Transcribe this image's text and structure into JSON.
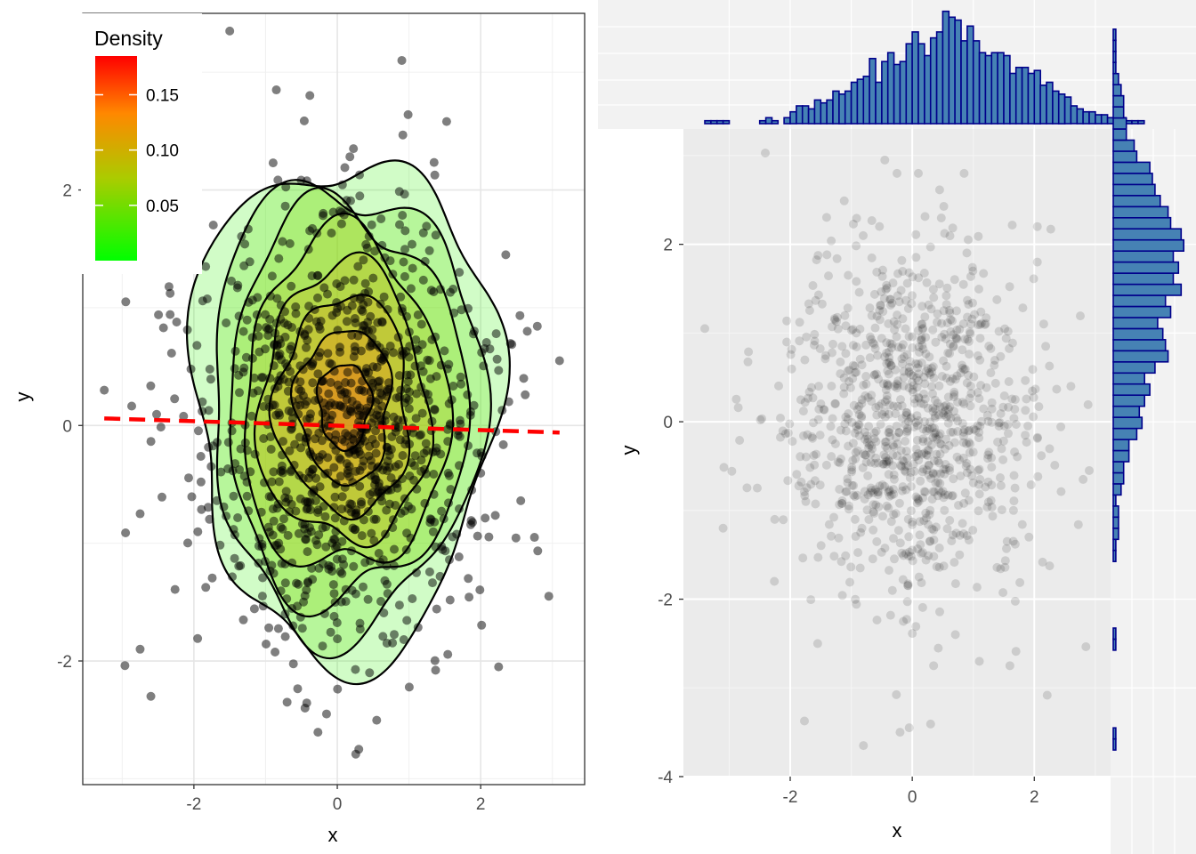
{
  "chart_data": [
    {
      "type": "scatter",
      "panel": "left",
      "title": "",
      "xlabel": "x",
      "ylabel": "y",
      "xlim": [
        -3.55,
        3.45
      ],
      "ylim": [
        -3.05,
        3.5
      ],
      "x_ticks": [
        -2,
        0,
        2
      ],
      "y_ticks": [
        -2,
        0,
        2
      ],
      "x_tick_labels": [
        "-2",
        "0",
        "2"
      ],
      "y_tick_labels": [
        "-2",
        "0",
        "2"
      ],
      "grid": true,
      "layers": [
        "scatter points (black, alpha 0.5)",
        "filled 2D density contours",
        "contour lines (black)",
        "linear fit (red dashed)"
      ],
      "point_color": "#000000",
      "points": {
        "n": 1000,
        "distribution": "bivariate normal",
        "mean": [
          0.05,
          0.0
        ],
        "sd": [
          1.0,
          0.95
        ],
        "outliers": [
          [
            -3.25,
            0.3
          ],
          [
            -3.0,
            1.35
          ],
          [
            -2.95,
            1.05
          ],
          [
            -2.75,
            -0.75
          ],
          [
            -2.6,
            -2.3
          ],
          [
            -2.75,
            -1.9
          ],
          [
            3.1,
            0.55
          ],
          [
            2.95,
            -1.45
          ],
          [
            2.75,
            -0.95
          ],
          [
            2.65,
            0.8
          ],
          [
            2.6,
            0.4
          ],
          [
            2.35,
            1.45
          ],
          [
            2.25,
            -2.05
          ],
          [
            0.9,
            3.1
          ],
          [
            -1.5,
            3.35
          ],
          [
            -0.85,
            2.85
          ],
          [
            0.3,
            -2.75
          ],
          [
            -0.15,
            -2.45
          ],
          [
            -0.45,
            -2.4
          ],
          [
            -0.7,
            -2.35
          ],
          [
            0.45,
            -2.1
          ]
        ]
      },
      "density_contours": {
        "levels": [
          0.02,
          0.04,
          0.06,
          0.08,
          0.1,
          0.12,
          0.14,
          0.16
        ],
        "peak": [
          0.1,
          0.05
        ],
        "outer_extent_x": [
          -2.0,
          2.25
        ],
        "outer_extent_y": [
          -2.0,
          2.25
        ],
        "fill_scale": "green to red"
      },
      "fit_line": {
        "type": "linear regression",
        "color": "#ff0000",
        "style": "dashed",
        "x": [
          -3.25,
          3.1
        ],
        "y": [
          0.06,
          -0.06
        ]
      },
      "legend": {
        "title": "Density",
        "position": "top-left",
        "type": "colorbar",
        "colors": [
          "#00ff00",
          "#aacc00",
          "#ff8800",
          "#ff0000"
        ],
        "range": [
          0,
          0.185
        ],
        "ticks": [
          0.05,
          0.1,
          0.15
        ],
        "tick_labels": [
          "0.05",
          "0.10",
          "0.15"
        ]
      }
    },
    {
      "type": "scatter",
      "panel": "right",
      "title": "",
      "xlabel": "x",
      "ylabel": "y",
      "xlim": [
        -3.75,
        3.25
      ],
      "ylim": [
        -4.0,
        3.3
      ],
      "x_ticks": [
        -2,
        0,
        2
      ],
      "y_ticks": [
        -4,
        -2,
        0,
        2
      ],
      "x_tick_labels": [
        "-2",
        "0",
        "2"
      ],
      "y_tick_labels": [
        "-4",
        "-2",
        "0",
        "2"
      ],
      "grid": true,
      "background": "#ebebeb",
      "point_color": "#000000",
      "points": {
        "n": 1000,
        "distribution": "bivariate normal",
        "mean": [
          0.0,
          0.0
        ],
        "sd": [
          1.0,
          1.0
        ],
        "outliers": [
          [
            -3.4,
            1.05
          ],
          [
            -3.1,
            -1.2
          ],
          [
            -0.45,
            2.95
          ],
          [
            -0.25,
            2.8
          ],
          [
            0.1,
            2.8
          ],
          [
            0.85,
            2.8
          ],
          [
            -0.8,
            -3.65
          ],
          [
            -0.05,
            -3.45
          ],
          [
            -0.2,
            -3.5
          ],
          [
            0.35,
            -2.75
          ],
          [
            1.1,
            -2.7
          ],
          [
            1.6,
            -2.75
          ],
          [
            2.9,
            -0.55
          ],
          [
            2.8,
            -0.65
          ],
          [
            2.6,
            0.4
          ],
          [
            2.05,
            2.2
          ],
          [
            2.05,
            1.8
          ],
          [
            -1.55,
            -2.5
          ]
        ]
      }
    },
    {
      "type": "bar",
      "panel": "top-marginal",
      "title": "",
      "orientation": "vertical",
      "description": "histogram of x",
      "fill": "#4682b4",
      "stroke": "#00008b",
      "bin_start": -3.4,
      "bin_width": 0.1,
      "values": [
        1,
        1,
        1,
        1,
        0,
        0,
        0,
        0,
        0,
        1,
        2,
        1,
        0,
        2,
        4,
        6,
        6,
        5,
        8,
        7,
        8,
        11,
        10,
        11,
        14,
        15,
        16,
        22,
        14,
        21,
        24,
        20,
        21,
        27,
        31,
        27,
        23,
        29,
        31,
        38,
        36,
        35,
        28,
        33,
        28,
        24,
        23,
        24,
        24,
        23,
        17,
        19,
        19,
        17,
        18,
        13,
        14,
        11,
        10,
        9,
        6,
        5,
        4,
        4,
        3,
        3,
        2,
        2,
        2,
        1,
        1,
        1
      ],
      "ylim": [
        0,
        40
      ]
    },
    {
      "type": "bar",
      "panel": "right-marginal",
      "title": "",
      "orientation": "horizontal",
      "description": "histogram of y",
      "fill": "#4682b4",
      "stroke": "#00008b",
      "bin_start": -3.7,
      "bin_width": 0.125,
      "values": [
        1,
        1,
        0,
        0,
        0,
        0,
        0,
        0,
        0,
        1,
        1,
        0,
        0,
        0,
        0,
        0,
        0,
        1,
        1,
        2,
        2,
        2,
        1,
        3,
        4,
        4,
        6,
        6,
        9,
        11,
        10,
        12,
        14,
        12,
        16,
        21,
        20,
        19,
        17,
        22,
        20,
        26,
        23,
        25,
        23,
        27,
        26,
        22,
        21,
        18,
        16,
        15,
        14,
        9,
        8,
        5,
        5,
        4,
        4,
        3,
        2,
        1,
        1,
        1,
        1
      ],
      "xlim": [
        0,
        30
      ]
    }
  ]
}
